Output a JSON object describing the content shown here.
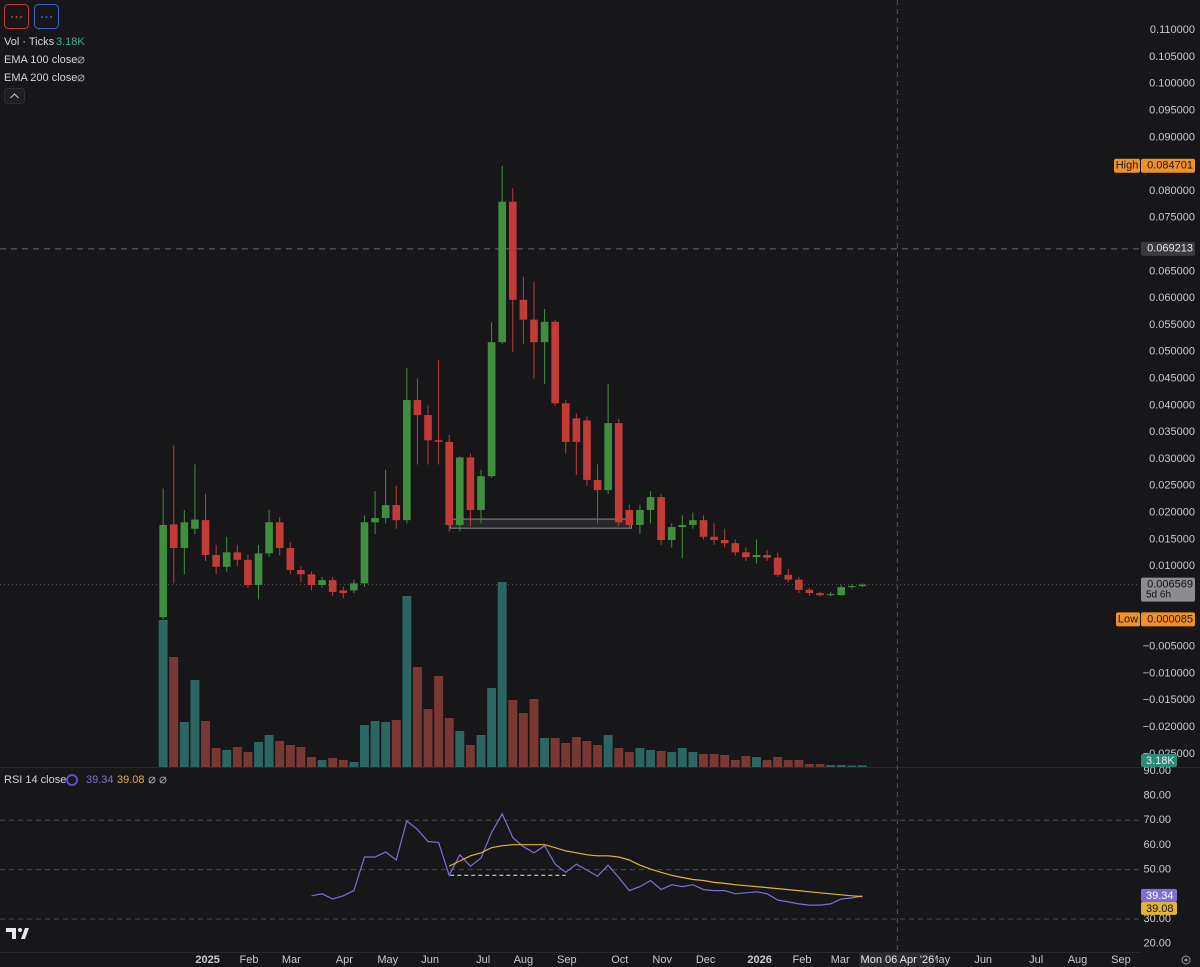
{
  "chart_data": {
    "type": "candlestick",
    "up_color": "#3f8f3f",
    "down_color": "#c23b36",
    "volume_up_color": "#2b6663",
    "volume_down_color": "#7a3835",
    "candles": [
      [
        0.0005,
        0.0245,
        8.5e-05,
        0.0177
      ],
      [
        0.0178,
        0.0325,
        0.0068,
        0.0134
      ],
      [
        0.0134,
        0.0205,
        0.0085,
        0.0182
      ],
      [
        0.017,
        0.029,
        0.016,
        0.0187
      ],
      [
        0.0186,
        0.0235,
        0.011,
        0.0121
      ],
      [
        0.0121,
        0.014,
        0.0085,
        0.0099
      ],
      [
        0.0099,
        0.0155,
        0.009,
        0.0126
      ],
      [
        0.0126,
        0.014,
        0.01,
        0.0112
      ],
      [
        0.0112,
        0.0122,
        0.006,
        0.0065
      ],
      [
        0.0065,
        0.014,
        0.0038,
        0.0124
      ],
      [
        0.0124,
        0.0205,
        0.0118,
        0.0182
      ],
      [
        0.0182,
        0.0192,
        0.012,
        0.0134
      ],
      [
        0.0134,
        0.0145,
        0.0085,
        0.0093
      ],
      [
        0.0093,
        0.01,
        0.007,
        0.0085
      ],
      [
        0.0085,
        0.009,
        0.0055,
        0.0065
      ],
      [
        0.0065,
        0.008,
        0.006,
        0.0074
      ],
      [
        0.0074,
        0.008,
        0.0045,
        0.0052
      ],
      [
        0.0055,
        0.0062,
        0.004,
        0.005
      ],
      [
        0.0055,
        0.0075,
        0.005,
        0.0068
      ],
      [
        0.0068,
        0.0195,
        0.0062,
        0.0182
      ],
      [
        0.0182,
        0.024,
        0.016,
        0.019
      ],
      [
        0.019,
        0.028,
        0.018,
        0.0214
      ],
      [
        0.0214,
        0.025,
        0.017,
        0.0186
      ],
      [
        0.0186,
        0.047,
        0.018,
        0.041
      ],
      [
        0.041,
        0.045,
        0.029,
        0.0382
      ],
      [
        0.0382,
        0.04,
        0.029,
        0.0335
      ],
      [
        0.0335,
        0.0485,
        0.029,
        0.0332
      ],
      [
        0.0332,
        0.0345,
        0.0165,
        0.0177
      ],
      [
        0.0177,
        0.0305,
        0.0165,
        0.0303
      ],
      [
        0.0303,
        0.031,
        0.0175,
        0.0205
      ],
      [
        0.0205,
        0.028,
        0.018,
        0.0268
      ],
      [
        0.0268,
        0.0555,
        0.0265,
        0.0518
      ],
      [
        0.0518,
        0.084701,
        0.0515,
        0.078
      ],
      [
        0.078,
        0.0805,
        0.05,
        0.0597
      ],
      [
        0.0597,
        0.064,
        0.0515,
        0.056
      ],
      [
        0.056,
        0.063,
        0.045,
        0.0518
      ],
      [
        0.0518,
        0.058,
        0.044,
        0.0556
      ],
      [
        0.0556,
        0.056,
        0.04,
        0.0404
      ],
      [
        0.0404,
        0.041,
        0.031,
        0.0332
      ],
      [
        0.0376,
        0.0385,
        0.027,
        0.0332
      ],
      [
        0.0372,
        0.038,
        0.025,
        0.0261
      ],
      [
        0.0261,
        0.029,
        0.018,
        0.0242
      ],
      [
        0.0242,
        0.044,
        0.0235,
        0.0367
      ],
      [
        0.0367,
        0.0375,
        0.0175,
        0.0182
      ],
      [
        0.0205,
        0.0215,
        0.0172,
        0.0177
      ],
      [
        0.0177,
        0.0215,
        0.016,
        0.0205
      ],
      [
        0.0205,
        0.024,
        0.018,
        0.0229
      ],
      [
        0.0229,
        0.0235,
        0.014,
        0.0149
      ],
      [
        0.0149,
        0.018,
        0.0135,
        0.0173
      ],
      [
        0.0173,
        0.0195,
        0.0115,
        0.0177
      ],
      [
        0.0177,
        0.02,
        0.017,
        0.0186
      ],
      [
        0.0186,
        0.0195,
        0.015,
        0.0155
      ],
      [
        0.0155,
        0.018,
        0.014,
        0.0149
      ],
      [
        0.0149,
        0.017,
        0.0135,
        0.0143
      ],
      [
        0.0143,
        0.015,
        0.012,
        0.0126
      ],
      [
        0.0126,
        0.0135,
        0.011,
        0.0117
      ],
      [
        0.0117,
        0.015,
        0.0105,
        0.0121
      ],
      [
        0.0121,
        0.013,
        0.011,
        0.0116
      ],
      [
        0.0116,
        0.0125,
        0.008,
        0.0084
      ],
      [
        0.0084,
        0.0095,
        0.007,
        0.0075
      ],
      [
        0.0075,
        0.008,
        0.005,
        0.0056
      ],
      [
        0.0056,
        0.006,
        0.0045,
        0.005
      ],
      [
        0.005,
        0.0052,
        0.0044,
        0.0046
      ],
      [
        0.0046,
        0.0052,
        0.0044,
        0.0048
      ],
      [
        0.0046,
        0.0065,
        0.0045,
        0.0061
      ],
      [
        0.0061,
        0.0066,
        0.0058,
        0.0063
      ],
      [
        0.0063,
        0.0068,
        0.0061,
        0.006569
      ]
    ],
    "volume": {
      "name": "Vol · Ticks",
      "last_label": "3.18K",
      "values": [
        294000,
        220000,
        90000,
        174000,
        92000,
        38000,
        34000,
        40000,
        30000,
        50000,
        64000,
        52000,
        44000,
        40000,
        20000,
        14000,
        18000,
        14000,
        10000,
        84000,
        92000,
        90000,
        94000,
        342000,
        200000,
        116000,
        182000,
        98000,
        72000,
        44000,
        64000,
        158000,
        370000,
        134000,
        108000,
        136000,
        58000,
        58000,
        48000,
        60000,
        52000,
        44000,
        64000,
        38000,
        30000,
        38000,
        34000,
        32000,
        30000,
        38000,
        30000,
        26000,
        26000,
        24000,
        14000,
        22000,
        20000,
        14000,
        20000,
        14000,
        14000,
        6000,
        6000,
        4000,
        4000,
        3000,
        3180
      ]
    },
    "indicators": [
      "EMA 100 close",
      "EMA 200 close"
    ],
    "xlim": [
      -15.4,
      92.2
    ],
    "ylim": [
      -0.02745,
      0.11563
    ],
    "yticks": [
      {
        "value": 0.11,
        "label": "0.110000"
      },
      {
        "value": 0.105,
        "label": "0.105000"
      },
      {
        "value": 0.1,
        "label": "0.100000"
      },
      {
        "value": 0.095,
        "label": "0.095000"
      },
      {
        "value": 0.09,
        "label": "0.090000"
      },
      {
        "value": 0.08,
        "label": "0.080000"
      },
      {
        "value": 0.075,
        "label": "0.075000"
      },
      {
        "value": 0.065,
        "label": "0.065000"
      },
      {
        "value": 0.06,
        "label": "0.060000"
      },
      {
        "value": 0.055,
        "label": "0.055000"
      },
      {
        "value": 0.05,
        "label": "0.050000"
      },
      {
        "value": 0.045,
        "label": "0.045000"
      },
      {
        "value": 0.04,
        "label": "0.040000"
      },
      {
        "value": 0.035,
        "label": "0.035000"
      },
      {
        "value": 0.03,
        "label": "0.030000"
      },
      {
        "value": 0.025,
        "label": "0.025000"
      },
      {
        "value": 0.02,
        "label": "0.020000"
      },
      {
        "value": 0.015,
        "label": "0.015000"
      },
      {
        "value": 0.01,
        "label": "0.010000"
      },
      {
        "value": -0.005,
        "label": "−0.005000"
      },
      {
        "value": -0.01,
        "label": "−0.010000"
      },
      {
        "value": -0.015,
        "label": "−0.015000"
      },
      {
        "value": -0.02,
        "label": "−0.020000"
      },
      {
        "value": -0.025,
        "label": "−0.025000"
      }
    ],
    "xticks": [
      {
        "value": 4.2,
        "label": "2025"
      },
      {
        "value": 8.1,
        "label": "Feb"
      },
      {
        "value": 12.1,
        "label": "Mar"
      },
      {
        "value": 17.1,
        "label": "Apr"
      },
      {
        "value": 21.2,
        "label": "May"
      },
      {
        "value": 25.2,
        "label": "Jun"
      },
      {
        "value": 30.2,
        "label": "Jul"
      },
      {
        "value": 34.0,
        "label": "Aug"
      },
      {
        "value": 38.1,
        "label": "Sep"
      },
      {
        "value": 43.1,
        "label": "Oct"
      },
      {
        "value": 47.1,
        "label": "Nov"
      },
      {
        "value": 51.2,
        "label": "Dec"
      },
      {
        "value": 56.3,
        "label": "2026"
      },
      {
        "value": 60.3,
        "label": "Feb"
      },
      {
        "value": 63.9,
        "label": "Mar"
      },
      {
        "value": 73.3,
        "label": "May"
      },
      {
        "value": 77.4,
        "label": "Jun"
      },
      {
        "value": 82.4,
        "label": "Jul"
      },
      {
        "value": 86.3,
        "label": "Aug"
      },
      {
        "value": 90.4,
        "label": "Sep"
      }
    ],
    "high": {
      "label": "High",
      "value": 0.084701
    },
    "low": {
      "label": "Low",
      "value": 8.5e-05
    },
    "price_line": 0.069213,
    "last_price": {
      "value": 0.006569,
      "countdown": "5d 6h"
    },
    "crosshair": {
      "x": 69.3,
      "label": "Mon 06 Apr '26"
    },
    "drawing_box": {
      "x": [
        27.1,
        44.2
      ],
      "y": [
        0.0188,
        0.0171
      ]
    },
    "rsi": {
      "name": "RSI 14 close",
      "ylim": [
        16.6,
        91.2
      ],
      "yticks": [
        {
          "value": 90,
          "label": "90.00"
        },
        {
          "value": 80,
          "label": "80.00"
        },
        {
          "value": 70,
          "label": "70.00"
        },
        {
          "value": 60,
          "label": "60.00"
        },
        {
          "value": 50,
          "label": "50.00"
        },
        {
          "value": 30,
          "label": "30.00"
        },
        {
          "value": 20,
          "label": "20.00"
        }
      ],
      "bands": [
        70,
        50,
        30
      ],
      "series": [
        {
          "name": "RSI",
          "color": "#7e6fd6",
          "values": [
            null,
            null,
            null,
            null,
            null,
            null,
            null,
            null,
            null,
            null,
            null,
            null,
            null,
            null,
            39.4,
            40.2,
            38.1,
            39.4,
            41.5,
            55.1,
            55.1,
            57.2,
            53.9,
            69.7,
            66.3,
            61.4,
            61.0,
            47.7,
            56.0,
            51.4,
            54.7,
            65.1,
            72.6,
            63.0,
            59.3,
            56.8,
            59.7,
            52.2,
            48.9,
            52.2,
            49.8,
            47.3,
            51.8,
            46.8,
            41.5,
            43.1,
            45.6,
            41.9,
            43.9,
            43.1,
            43.9,
            41.9,
            41.5,
            41.5,
            40.2,
            40.6,
            41.0,
            40.2,
            37.7,
            36.9,
            36.1,
            35.6,
            35.6,
            36.1,
            38.1,
            38.5,
            39.34
          ]
        },
        {
          "name": "RSI MA",
          "color": "#e0b33a",
          "values": [
            null,
            null,
            null,
            null,
            null,
            null,
            null,
            null,
            null,
            null,
            null,
            null,
            null,
            null,
            null,
            null,
            null,
            null,
            null,
            null,
            null,
            null,
            null,
            null,
            null,
            null,
            null,
            51.4,
            53.5,
            55.6,
            56.8,
            58.9,
            59.7,
            60.1,
            60.1,
            60.1,
            60.1,
            58.9,
            57.6,
            56.8,
            56.0,
            55.6,
            55.6,
            55.1,
            53.9,
            51.8,
            50.2,
            48.9,
            47.7,
            46.8,
            46.0,
            45.6,
            44.8,
            44.4,
            43.9,
            43.5,
            43.1,
            42.7,
            42.3,
            41.9,
            41.5,
            41.0,
            40.6,
            40.2,
            39.8,
            39.4,
            39.08
          ]
        }
      ],
      "drawing_line": {
        "x": [
          27.1,
          38.0
        ],
        "y": [
          47.7,
          47.7
        ]
      }
    }
  }
}
